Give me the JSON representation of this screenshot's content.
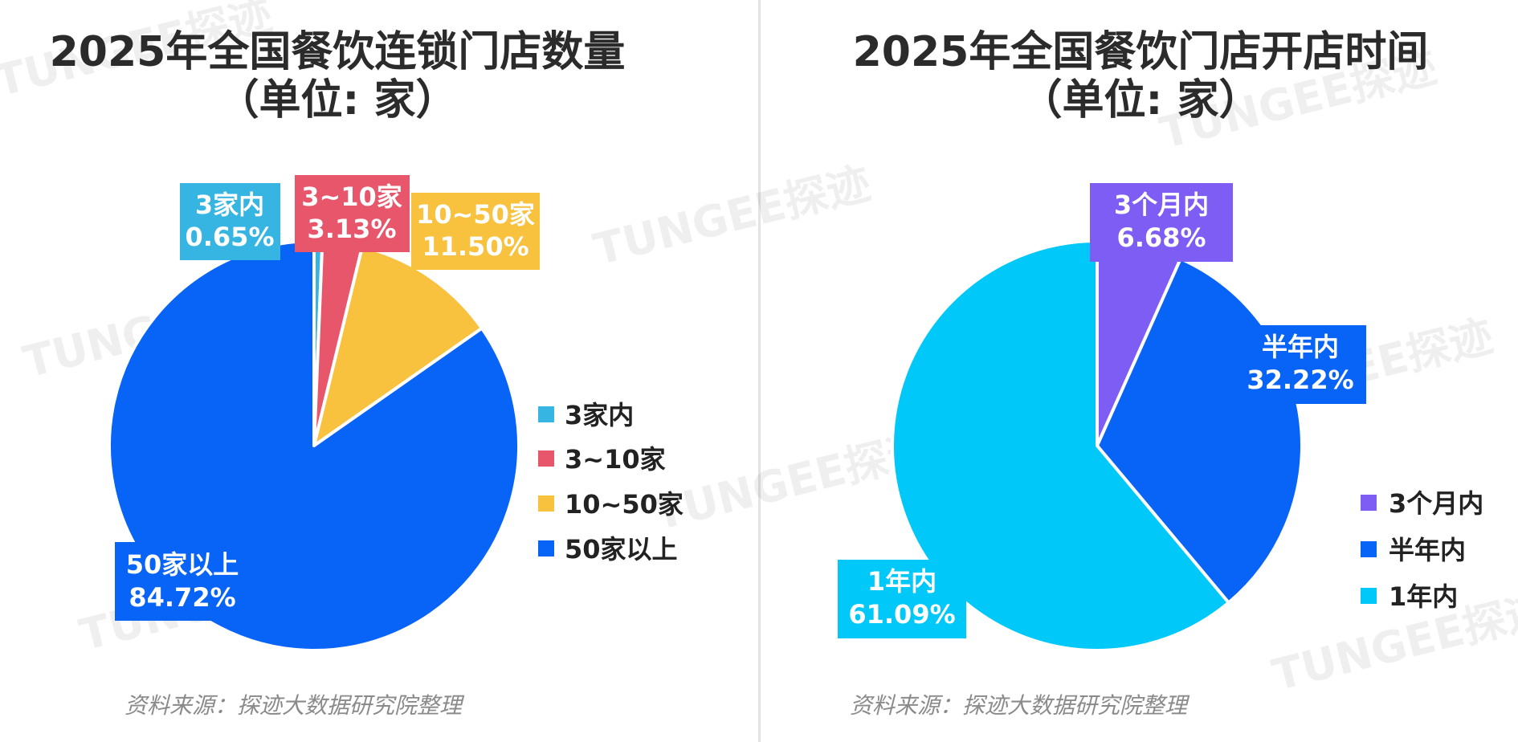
{
  "watermark": "TUNGEE探迹",
  "source_label": "资料来源：探迹大数据研究院整理",
  "colors": {
    "3家内": "#37b5e2",
    "3~10家": "#e8566b",
    "10~50家": "#f8c13e",
    "50家以上": "#0863f7",
    "3个月内": "#7e5df4",
    "半年内": "#0863f7",
    "1年内": "#00c8f8"
  },
  "chart_data": [
    {
      "type": "pie",
      "title_line1": "2025年全国餐饮连锁门店数量",
      "title_line2": "（单位: 家）",
      "categories": [
        "3家内",
        "3~10家",
        "10~50家",
        "50家以上"
      ],
      "values": [
        0.65,
        3.13,
        11.5,
        84.72
      ],
      "value_labels": [
        "0.65%",
        "3.13%",
        "11.50%",
        "84.72%"
      ],
      "legend": [
        "3家内",
        "3~10家",
        "10~50家",
        "50家以上"
      ],
      "legend_position": "right"
    },
    {
      "type": "pie",
      "title_line1": "2025年全国餐饮门店开店时间",
      "title_line2": "（单位: 家）",
      "categories": [
        "3个月内",
        "半年内",
        "1年内"
      ],
      "values": [
        6.68,
        32.22,
        61.09
      ],
      "value_labels": [
        "6.68%",
        "32.22%",
        "61.09%"
      ],
      "legend": [
        "3个月内",
        "半年内",
        "1年内"
      ],
      "legend_position": "bottom-right"
    }
  ]
}
